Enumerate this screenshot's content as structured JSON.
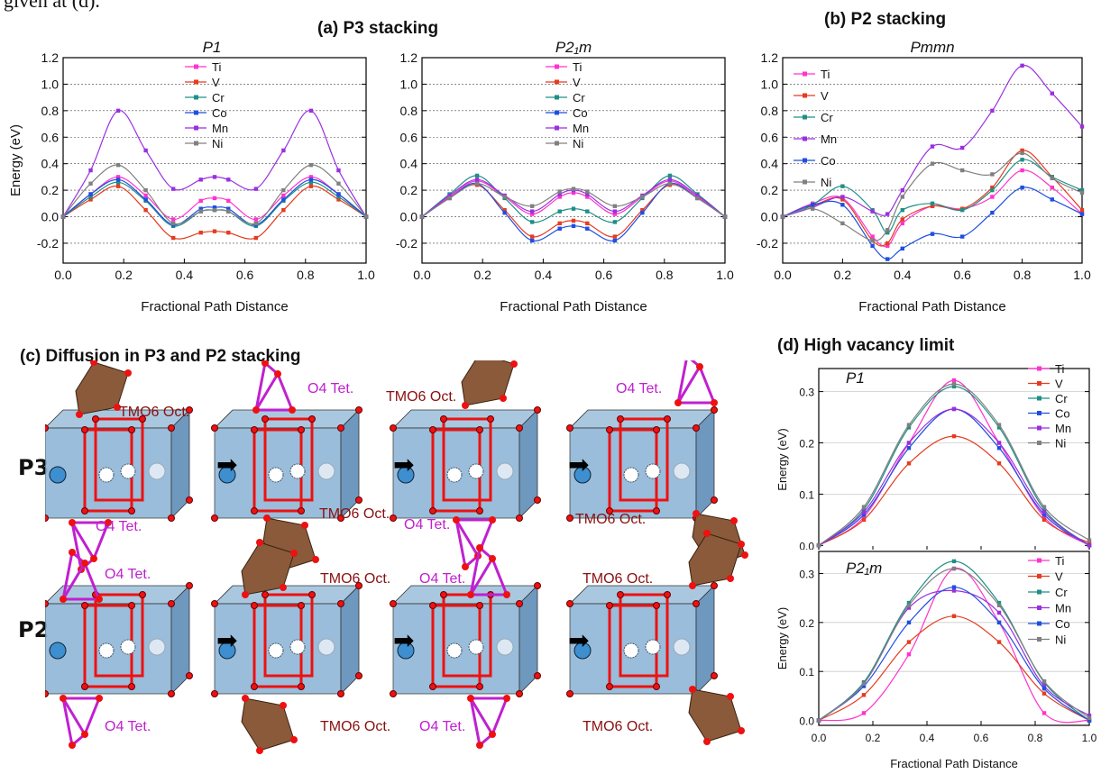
{
  "top_text": "given at (d).",
  "titles": {
    "a": "(a) P3 stacking",
    "b": "(b) P2 stacking",
    "c": "(c) Diffusion in P3 and P2 stacking",
    "d": "(d) High vacancy limit"
  },
  "diagram": {
    "row_labels": [
      "P3",
      "P2"
    ],
    "labels": {
      "tmo6": "TMO6 Oct.",
      "o4": "O4 Tet."
    },
    "arrow_glyph": "➡"
  },
  "colors": {
    "Ti": "#ff33cc",
    "V": "#e53b1f",
    "Cr": "#1f8f86",
    "Co": "#1f4fe0",
    "Mn": "#9a2fe0",
    "Ni": "#808080"
  },
  "chart_data": [
    {
      "id": "a1",
      "type": "line",
      "subtitle": "P1",
      "xlabel": "Fractional Path Distance",
      "ylabel": "Energy (eV)",
      "xlim": [
        0,
        1
      ],
      "ylim": [
        -0.35,
        1.2
      ],
      "xticks": [
        "0.0",
        "0.2",
        "0.4",
        "0.6",
        "0.8",
        "1.0"
      ],
      "yticks": [
        "-0.2",
        "0.0",
        "0.2",
        "0.4",
        "0.6",
        "0.8",
        "1.0",
        "1.2"
      ],
      "grid_y": [
        -0.2,
        0.0,
        0.2,
        0.4,
        0.6,
        0.8,
        1.0
      ],
      "legend": [
        "Ti",
        "V",
        "Cr",
        "Co",
        "Mn",
        "Ni"
      ],
      "x": [
        0,
        0.0909,
        0.1818,
        0.2727,
        0.3636,
        0.4545,
        0.5,
        0.5455,
        0.6364,
        0.7273,
        0.8182,
        0.9091,
        1.0
      ],
      "series": [
        {
          "name": "Ti",
          "values": [
            0,
            0.17,
            0.3,
            0.16,
            -0.02,
            0.12,
            0.14,
            0.12,
            -0.02,
            0.16,
            0.3,
            0.17,
            0
          ]
        },
        {
          "name": "V",
          "values": [
            0,
            0.13,
            0.23,
            0.05,
            -0.16,
            -0.12,
            -0.11,
            -0.12,
            -0.16,
            0.05,
            0.23,
            0.13,
            0
          ]
        },
        {
          "name": "Cr",
          "values": [
            0,
            0.15,
            0.26,
            0.12,
            -0.07,
            0.04,
            0.05,
            0.04,
            -0.07,
            0.12,
            0.26,
            0.15,
            0
          ]
        },
        {
          "name": "Co",
          "values": [
            0,
            0.17,
            0.28,
            0.13,
            -0.06,
            0.06,
            0.07,
            0.06,
            -0.06,
            0.13,
            0.28,
            0.17,
            0
          ]
        },
        {
          "name": "Mn",
          "values": [
            0,
            0.35,
            0.8,
            0.5,
            0.21,
            0.28,
            0.3,
            0.28,
            0.21,
            0.5,
            0.8,
            0.35,
            0
          ]
        },
        {
          "name": "Ni",
          "values": [
            0,
            0.25,
            0.39,
            0.2,
            -0.05,
            0.04,
            0.05,
            0.04,
            -0.05,
            0.2,
            0.39,
            0.25,
            0
          ]
        }
      ]
    },
    {
      "id": "a2",
      "type": "line",
      "subtitle": "P2₁m",
      "xlabel": "Fractional Path Distance",
      "ylabel": "",
      "xlim": [
        0,
        1
      ],
      "ylim": [
        -0.35,
        1.2
      ],
      "xticks": [
        "0.0",
        "0.2",
        "0.4",
        "0.6",
        "0.8",
        "1.0"
      ],
      "yticks": [
        "-0.2",
        "0.0",
        "0.2",
        "0.4",
        "0.6",
        "0.8",
        "1.0",
        "1.2"
      ],
      "grid_y": [
        -0.2,
        0.0,
        0.2,
        0.4,
        0.6,
        0.8,
        1.0
      ],
      "legend": [
        "Ti",
        "V",
        "Cr",
        "Co",
        "Mn",
        "Ni"
      ],
      "x": [
        0,
        0.0909,
        0.1818,
        0.2727,
        0.3636,
        0.4545,
        0.5,
        0.5455,
        0.6364,
        0.7273,
        0.8182,
        0.9091,
        1.0
      ],
      "series": [
        {
          "name": "Ti",
          "values": [
            0,
            0.15,
            0.27,
            0.15,
            0.02,
            0.15,
            0.18,
            0.15,
            0.02,
            0.15,
            0.27,
            0.15,
            0
          ]
        },
        {
          "name": "V",
          "values": [
            0,
            0.14,
            0.24,
            0.05,
            -0.15,
            -0.05,
            -0.03,
            -0.05,
            -0.15,
            0.05,
            0.24,
            0.14,
            0
          ]
        },
        {
          "name": "Cr",
          "values": [
            0,
            0.17,
            0.31,
            0.14,
            -0.04,
            0.04,
            0.06,
            0.04,
            -0.04,
            0.14,
            0.31,
            0.17,
            0
          ]
        },
        {
          "name": "Co",
          "values": [
            0,
            0.14,
            0.25,
            0.03,
            -0.18,
            -0.09,
            -0.07,
            -0.09,
            -0.18,
            0.03,
            0.25,
            0.14,
            0
          ]
        },
        {
          "name": "Mn",
          "values": [
            0,
            0.16,
            0.28,
            0.16,
            0.04,
            0.17,
            0.2,
            0.17,
            0.04,
            0.16,
            0.28,
            0.16,
            0
          ]
        },
        {
          "name": "Ni",
          "values": [
            0,
            0.14,
            0.25,
            0.15,
            0.08,
            0.19,
            0.21,
            0.19,
            0.08,
            0.15,
            0.25,
            0.14,
            0
          ]
        }
      ]
    },
    {
      "id": "b",
      "type": "line",
      "subtitle": "Pmmn",
      "xlabel": "Fractional Path Distance",
      "ylabel": "",
      "xlim": [
        0,
        1
      ],
      "ylim": [
        -0.35,
        1.2
      ],
      "xticks": [
        "0.0",
        "0.2",
        "0.4",
        "0.6",
        "0.8",
        "1.0"
      ],
      "yticks": [
        "-0.2",
        "0.0",
        "0.2",
        "0.4",
        "0.6",
        "0.8",
        "1.0",
        "1.2"
      ],
      "grid_y": [
        -0.2,
        0.0,
        0.2,
        0.4,
        0.6,
        0.8,
        1.0
      ],
      "legend": [
        "Ti",
        "V",
        "Cr",
        "Mn",
        "Co",
        "Ni"
      ],
      "x": [
        0,
        0.1,
        0.2,
        0.3,
        0.35,
        0.4,
        0.5,
        0.6,
        0.7,
        0.8,
        0.9,
        1.0
      ],
      "series": [
        {
          "name": "Ti",
          "values": [
            0,
            0.1,
            0.14,
            -0.15,
            -0.22,
            -0.05,
            0.08,
            0.06,
            0.15,
            0.35,
            0.22,
            0.02
          ]
        },
        {
          "name": "V",
          "values": [
            0,
            0.08,
            0.13,
            -0.18,
            -0.2,
            -0.02,
            0.08,
            0.06,
            0.22,
            0.5,
            0.3,
            0.05
          ]
        },
        {
          "name": "Cr",
          "values": [
            0,
            0.09,
            0.23,
            0.05,
            -0.12,
            0.05,
            0.1,
            0.05,
            0.2,
            0.43,
            0.3,
            0.2
          ]
        },
        {
          "name": "Mn",
          "values": [
            0,
            0.07,
            0.15,
            0.04,
            0.02,
            0.2,
            0.53,
            0.52,
            0.8,
            1.14,
            0.93,
            0.68
          ]
        },
        {
          "name": "Co",
          "values": [
            0,
            0.09,
            0.09,
            -0.22,
            -0.32,
            -0.24,
            -0.13,
            -0.15,
            0.03,
            0.22,
            0.13,
            0.02
          ]
        },
        {
          "name": "Ni",
          "values": [
            0,
            0.06,
            -0.05,
            -0.18,
            -0.1,
            0.15,
            0.4,
            0.35,
            0.32,
            0.48,
            0.29,
            0.18
          ]
        }
      ]
    },
    {
      "id": "d1",
      "type": "line",
      "subtitle": "P1",
      "xlabel": "",
      "ylabel": "Energy (eV)",
      "xlim": [
        0,
        1
      ],
      "ylim": [
        -0.01,
        0.345
      ],
      "yticks": [
        "0.0",
        "0.1",
        "0.2",
        "0.3"
      ],
      "grid_y": [
        0.1,
        0.2,
        0.3
      ],
      "legend": [
        "Ti",
        "V",
        "Cr",
        "Co",
        "Mn",
        "Ni"
      ],
      "x": [
        0,
        0.1667,
        0.3333,
        0.5,
        0.6667,
        0.8333,
        1.0
      ],
      "series": [
        {
          "name": "Ti",
          "values": [
            0,
            0.055,
            0.2,
            0.322,
            0.2,
            0.055,
            0
          ]
        },
        {
          "name": "V",
          "values": [
            0,
            0.05,
            0.16,
            0.213,
            0.16,
            0.05,
            0.005
          ]
        },
        {
          "name": "Cr",
          "values": [
            0,
            0.07,
            0.23,
            0.31,
            0.23,
            0.07,
            0
          ]
        },
        {
          "name": "Co",
          "values": [
            0,
            0.06,
            0.19,
            0.266,
            0.19,
            0.06,
            0
          ]
        },
        {
          "name": "Mn",
          "values": [
            0,
            0.065,
            0.2,
            0.266,
            0.2,
            0.065,
            0
          ]
        },
        {
          "name": "Ni",
          "values": [
            0,
            0.075,
            0.235,
            0.315,
            0.235,
            0.075,
            0.01
          ]
        }
      ]
    },
    {
      "id": "d2",
      "type": "line",
      "subtitle": "P2₁m",
      "xlabel": "Fractional Path Distance",
      "ylabel": "Energy (eV)",
      "xlim": [
        0,
        1
      ],
      "ylim": [
        -0.01,
        0.345
      ],
      "xticks": [
        "0.0",
        "0.2",
        "0.4",
        "0.6",
        "0.8",
        "1.0"
      ],
      "yticks": [
        "0.0",
        "0.1",
        "0.2",
        "0.3"
      ],
      "grid_y": [
        0.1,
        0.2,
        0.3
      ],
      "legend": [
        "Ti",
        "V",
        "Cr",
        "Mn",
        "Co",
        "Ni"
      ],
      "x": [
        0,
        0.1667,
        0.3333,
        0.5,
        0.6667,
        0.8333,
        1.0
      ],
      "series": [
        {
          "name": "Ti",
          "values": [
            0,
            0.015,
            0.135,
            0.31,
            0.2,
            0.015,
            0
          ]
        },
        {
          "name": "V",
          "values": [
            0,
            0.052,
            0.16,
            0.213,
            0.16,
            0.055,
            0
          ]
        },
        {
          "name": "Cr",
          "values": [
            0,
            0.078,
            0.24,
            0.325,
            0.24,
            0.078,
            0
          ]
        },
        {
          "name": "Mn",
          "values": [
            0,
            0.075,
            0.23,
            0.265,
            0.22,
            0.07,
            0.01
          ]
        },
        {
          "name": "Co",
          "values": [
            0,
            0.07,
            0.2,
            0.272,
            0.2,
            0.065,
            0
          ]
        },
        {
          "name": "Ni",
          "values": [
            0,
            0.075,
            0.235,
            0.31,
            0.235,
            0.08,
            0.005
          ]
        }
      ]
    }
  ]
}
